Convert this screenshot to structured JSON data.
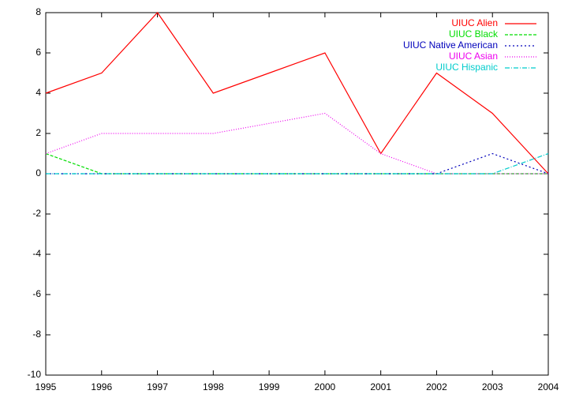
{
  "chart_data": {
    "type": "line",
    "x": [
      1995,
      1996,
      1997,
      1998,
      1999,
      2000,
      2001,
      2002,
      2003,
      2004
    ],
    "series": [
      {
        "name": "UIUC Alien",
        "color": "#ff0000",
        "dash": "none",
        "values": [
          4,
          5,
          8,
          4,
          5,
          6,
          1,
          5,
          3,
          0
        ]
      },
      {
        "name": "UIUC Black",
        "color": "#00dd00",
        "dash": "4,2",
        "values": [
          1,
          0,
          0,
          0,
          0,
          0,
          0,
          0,
          0,
          0
        ]
      },
      {
        "name": "UIUC Native American",
        "color": "#0000bb",
        "dash": "2,3",
        "values": [
          0,
          0,
          0,
          0,
          0,
          0,
          0,
          0,
          1,
          0
        ]
      },
      {
        "name": "UIUC Asian",
        "color": "#ee00ee",
        "dash": "1,2",
        "values": [
          1,
          2,
          2,
          2,
          2.5,
          3,
          1,
          0,
          0,
          0
        ]
      },
      {
        "name": "UIUC Hispanic",
        "color": "#00cccc",
        "dash": "6,2,1,2",
        "values": [
          0,
          0,
          0,
          0,
          0,
          0,
          0,
          0,
          0,
          1
        ]
      }
    ],
    "xlim": [
      1995,
      2004
    ],
    "xticks": [
      1995,
      1996,
      1997,
      1998,
      1999,
      2000,
      2001,
      2002,
      2003,
      2004
    ],
    "ylim": [
      -10,
      8
    ],
    "yticks": [
      -10,
      -8,
      -6,
      -4,
      -2,
      0,
      2,
      4,
      6,
      8
    ],
    "grid": false,
    "legend": "top-right"
  }
}
